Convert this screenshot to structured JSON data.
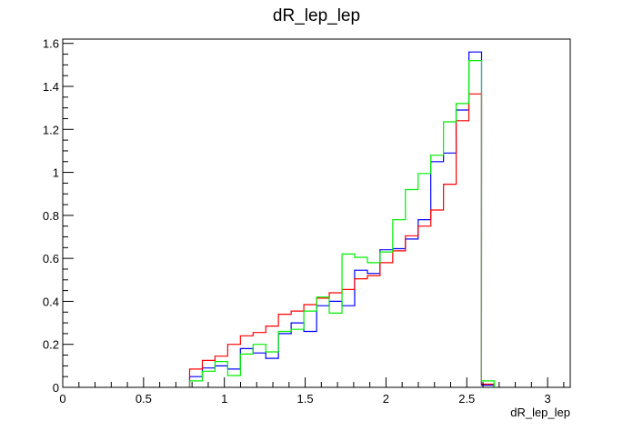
{
  "chart_data": {
    "type": "histogram",
    "title": "dR_lep_lep",
    "xlabel": "dR_lep_lep",
    "ylabel": "",
    "xlim": [
      0,
      3.14
    ],
    "ylim": [
      0,
      1.62
    ],
    "bin_width": 0.0785,
    "x_ticks": [
      0,
      0.5,
      1,
      1.5,
      2,
      2.5,
      3
    ],
    "x_tick_labels": [
      "0",
      "0.5",
      "1",
      "1.5",
      "2",
      "2.5",
      "3"
    ],
    "y_ticks": [
      0,
      0.2,
      0.4,
      0.6,
      0.8,
      1,
      1.2,
      1.4,
      1.6
    ],
    "y_tick_labels": [
      "0",
      "0.2",
      "0.4",
      "0.6",
      "0.8",
      "1",
      "1.2",
      "1.4",
      "1.6"
    ],
    "grid": false,
    "legend": "none",
    "series": [
      {
        "color": "#0000ff",
        "x_start": [
          0.785,
          0.864,
          0.942,
          1.021,
          1.099,
          1.178,
          1.256,
          1.335,
          1.413,
          1.492,
          1.571,
          1.649,
          1.728,
          1.806,
          1.885,
          1.963,
          2.042,
          2.12,
          2.199,
          2.277,
          2.356,
          2.434,
          2.513,
          2.591
        ],
        "values": [
          0.05,
          0.09,
          0.1,
          0.085,
          0.18,
          0.16,
          0.135,
          0.25,
          0.3,
          0.26,
          0.38,
          0.4,
          0.38,
          0.545,
          0.53,
          0.64,
          0.645,
          0.69,
          0.78,
          1.05,
          1.09,
          1.29,
          1.56,
          0.01
        ]
      },
      {
        "color": "#ff0000",
        "x_start": [
          0.785,
          0.864,
          0.942,
          1.021,
          1.099,
          1.178,
          1.256,
          1.335,
          1.413,
          1.492,
          1.571,
          1.649,
          1.728,
          1.806,
          1.885,
          1.963,
          2.042,
          2.12,
          2.199,
          2.277,
          2.356,
          2.434,
          2.513,
          2.591
        ],
        "values": [
          0.085,
          0.125,
          0.145,
          0.2,
          0.24,
          0.255,
          0.285,
          0.34,
          0.355,
          0.385,
          0.415,
          0.44,
          0.455,
          0.505,
          0.52,
          0.58,
          0.635,
          0.705,
          0.75,
          0.825,
          0.945,
          1.24,
          1.365,
          0.015
        ]
      },
      {
        "color": "#00ee00",
        "x_start": [
          0.785,
          0.864,
          0.942,
          1.021,
          1.099,
          1.178,
          1.256,
          1.335,
          1.413,
          1.492,
          1.571,
          1.649,
          1.728,
          1.806,
          1.885,
          1.963,
          2.042,
          2.12,
          2.199,
          2.277,
          2.356,
          2.434,
          2.513,
          2.591
        ],
        "values": [
          0.03,
          0.075,
          0.12,
          0.055,
          0.155,
          0.2,
          0.165,
          0.26,
          0.27,
          0.355,
          0.42,
          0.345,
          0.62,
          0.605,
          0.58,
          0.63,
          0.78,
          0.92,
          0.995,
          1.08,
          1.235,
          1.32,
          1.52,
          0.03
        ]
      }
    ]
  }
}
